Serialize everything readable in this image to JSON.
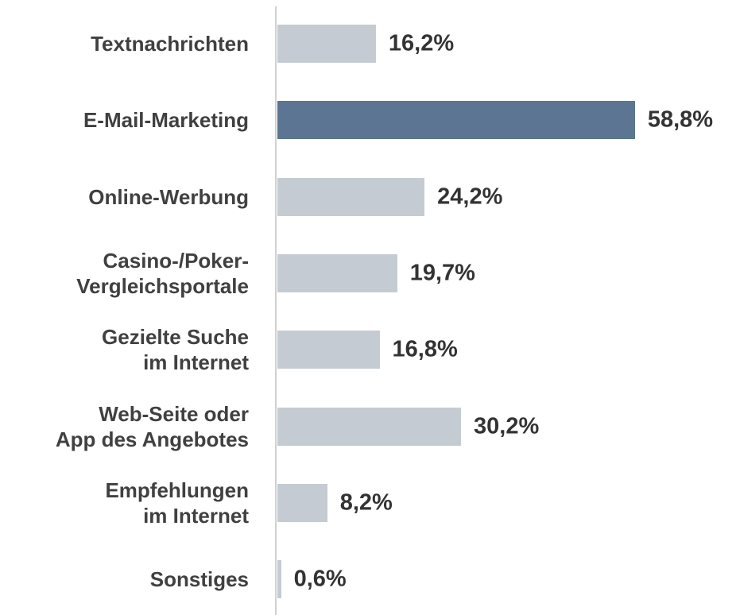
{
  "chart_data": {
    "type": "bar",
    "orientation": "horizontal",
    "categories": [
      "Textnachrichten",
      "E-Mail-Marketing",
      "Online-Werbung",
      "Casino-/Poker-\nVergleichsportale",
      "Gezielte Suche\nim Internet",
      "Web-Seite oder\nApp des Angebotes",
      "Empfehlungen\nim Internet",
      "Sonstiges"
    ],
    "values": [
      16.2,
      58.8,
      24.2,
      19.7,
      16.8,
      30.2,
      8.2,
      0.6
    ],
    "value_labels": [
      "16,2%",
      "58,8%",
      "24,2%",
      "19,7%",
      "16,8%",
      "30,2%",
      "8,2%",
      "0,6%"
    ],
    "colors": [
      "#c5cbd2",
      "#5b7592",
      "#c5cbd2",
      "#c5cbd2",
      "#c5cbd2",
      "#c5cbd2",
      "#c5cbd2",
      "#c5cbd2"
    ]
  }
}
